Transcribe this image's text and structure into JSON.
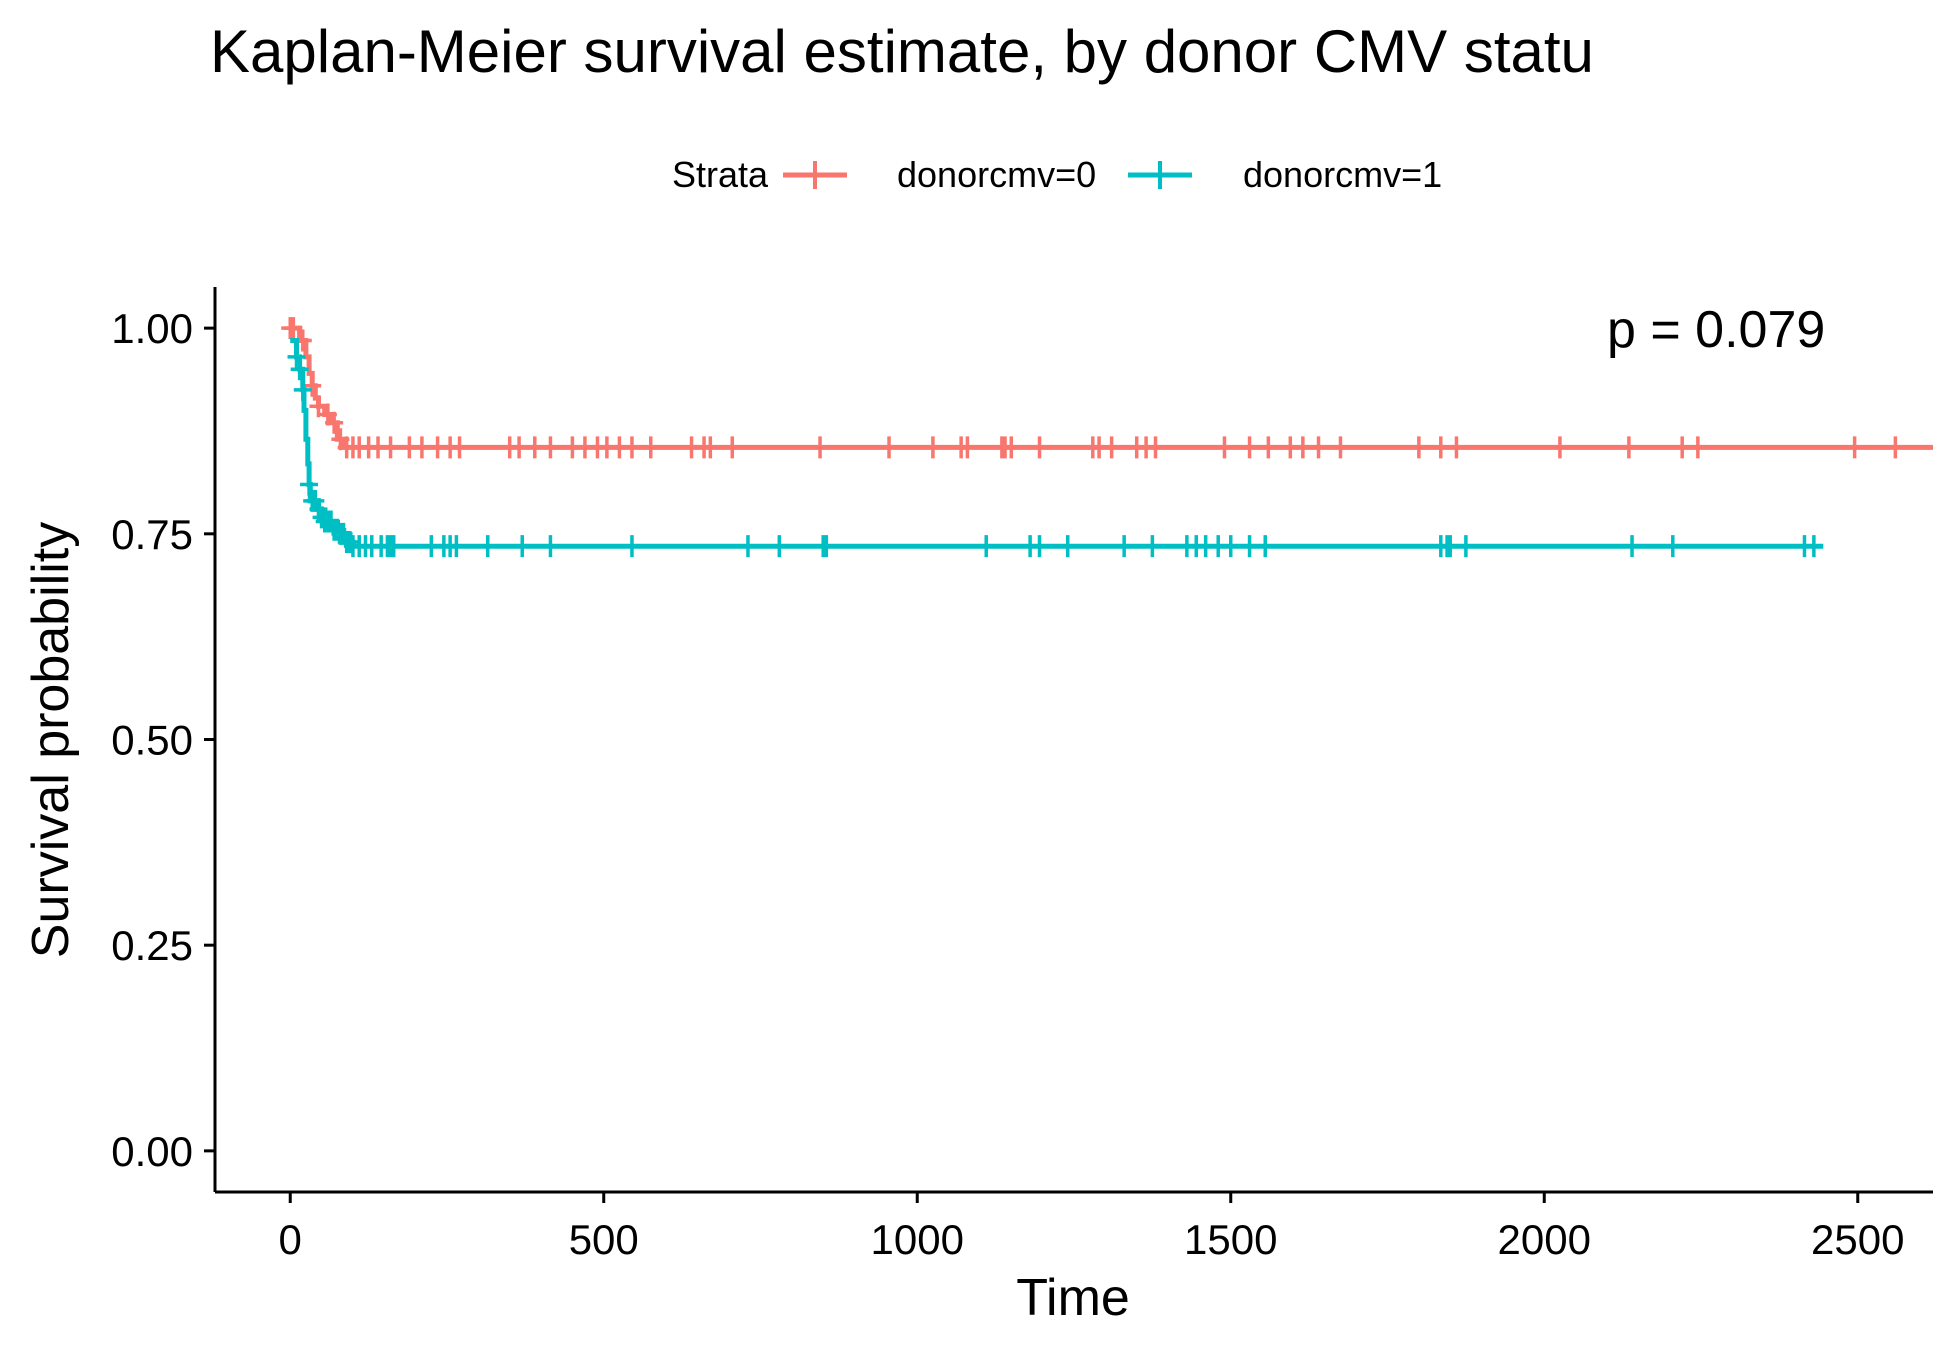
{
  "chart_data": {
    "type": "line",
    "step": true,
    "title": "Kaplan-Meier survival estimate, by donor CMV statu",
    "xlabel": "Time",
    "ylabel": "Survival probability",
    "xlim": [
      -120,
      2620
    ],
    "ylim": [
      -0.05,
      1.05
    ],
    "x_ticks": [
      0,
      500,
      1000,
      1500,
      2000,
      2500
    ],
    "x_tick_labels": [
      "0",
      "500",
      "1000",
      "1500",
      "2000",
      "2500"
    ],
    "y_ticks": [
      0,
      0.25,
      0.5,
      0.75,
      1.0
    ],
    "y_tick_labels": [
      "0.00",
      "0.25",
      "0.50",
      "0.75",
      "1.00"
    ],
    "grid": false,
    "legend": {
      "title": "Strata",
      "position": "top",
      "entries": [
        "donorcmv=0",
        "donorcmv=1"
      ]
    },
    "annotation": "p = 0.079",
    "series": [
      {
        "name": "donorcmv=0",
        "color": "#F8766D",
        "steps": [
          [
            0,
            1.0
          ],
          [
            15,
            0.985
          ],
          [
            25,
            0.965
          ],
          [
            30,
            0.945
          ],
          [
            35,
            0.93
          ],
          [
            40,
            0.915
          ],
          [
            45,
            0.905
          ],
          [
            55,
            0.895
          ],
          [
            65,
            0.885
          ],
          [
            75,
            0.865
          ],
          [
            85,
            0.855
          ],
          [
            2620,
            0.855
          ]
        ],
        "censor_times": [
          0,
          5,
          20,
          35,
          45,
          60,
          70,
          80,
          90,
          100,
          110,
          125,
          140,
          160,
          190,
          210,
          235,
          255,
          270,
          350,
          365,
          390,
          415,
          450,
          470,
          490,
          505,
          525,
          545,
          575,
          640,
          660,
          670,
          705,
          845,
          955,
          1025,
          1070,
          1080,
          1135,
          1140,
          1150,
          1195,
          1280,
          1290,
          1310,
          1350,
          1365,
          1380,
          1490,
          1530,
          1560,
          1595,
          1615,
          1640,
          1675,
          1800,
          1835,
          1860,
          2025,
          2135,
          2220,
          2245,
          2495,
          2560
        ]
      },
      {
        "name": "donorcmv=1",
        "color": "#00BFC4",
        "steps": [
          [
            0,
            0.985
          ],
          [
            10,
            0.965
          ],
          [
            15,
            0.95
          ],
          [
            20,
            0.925
          ],
          [
            22,
            0.9
          ],
          [
            25,
            0.865
          ],
          [
            28,
            0.835
          ],
          [
            30,
            0.81
          ],
          [
            32,
            0.79
          ],
          [
            45,
            0.78
          ],
          [
            50,
            0.77
          ],
          [
            55,
            0.765
          ],
          [
            70,
            0.755
          ],
          [
            80,
            0.75
          ],
          [
            90,
            0.74
          ],
          [
            100,
            0.735
          ],
          [
            2445,
            0.735
          ]
        ],
        "censor_times": [
          10,
          15,
          20,
          30,
          35,
          40,
          45,
          50,
          55,
          60,
          65,
          70,
          75,
          80,
          85,
          90,
          95,
          100,
          110,
          120,
          130,
          145,
          155,
          160,
          165,
          225,
          245,
          255,
          265,
          315,
          370,
          415,
          545,
          730,
          780,
          850,
          855,
          1110,
          1180,
          1195,
          1240,
          1330,
          1375,
          1430,
          1445,
          1460,
          1480,
          1500,
          1530,
          1555,
          1835,
          1845,
          1850,
          1875,
          2140,
          2205,
          2415,
          2430
        ]
      }
    ]
  }
}
